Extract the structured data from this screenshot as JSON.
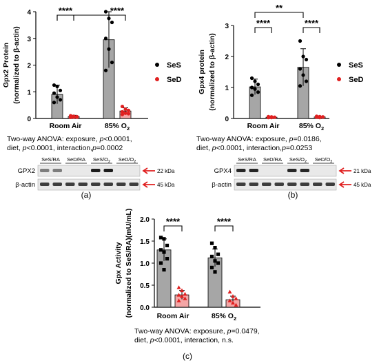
{
  "chart_data": [
    {
      "panel": "(a)",
      "type": "bar",
      "ylabel_line1": "Gpx2 Protein",
      "ylabel_line2": "(normalized to β-actin)",
      "ylim": [
        0,
        4
      ],
      "yticks": [
        "0",
        "1",
        "2",
        "3",
        "4"
      ],
      "categories": [
        "Room Air",
        "85% O₂"
      ],
      "series": [
        {
          "name": "SeS",
          "color": "#000000",
          "bar_color": "#a6a6a6",
          "values": [
            0.9,
            2.95
          ],
          "sd": [
            0.35,
            1.05
          ],
          "points": [
            [
              1.25,
              1.2,
              1.05,
              0.95,
              0.8,
              0.7,
              0.6
            ],
            [
              4.0,
              3.75,
              3.6,
              3.0,
              2.6,
              2.1,
              1.8
            ]
          ],
          "marker": "circle"
        },
        {
          "name": "SeD",
          "color": "#e02020",
          "bar_color": "#f4a6a6",
          "values": [
            0.07,
            0.28
          ],
          "sd": [
            0.05,
            0.12
          ],
          "points": [
            [
              0.1,
              0.08,
              0.07,
              0.06,
              0.05,
              0.05,
              0.04
            ],
            [
              0.45,
              0.35,
              0.3,
              0.25,
              0.2,
              0.18,
              0.15
            ]
          ],
          "marker": "circle"
        }
      ],
      "significance": [
        "****",
        "****"
      ],
      "stats_line1": "Two-way ANOVA: exposure, p<0.0001,",
      "stats_line2": "diet, p<0.0001, interaction,p=0.0002",
      "blot_lanes": [
        "SeS/RA",
        "SeD/RA",
        "SeS/O₂",
        "SeD/O₂"
      ],
      "blot_rows": [
        {
          "label": "GPX2",
          "kda": "22 kDa"
        },
        {
          "label": "β-actin",
          "kda": "45 kDa"
        }
      ]
    },
    {
      "panel": "(b)",
      "type": "bar",
      "ylabel_line1": "Gpx4 protein",
      "ylabel_line2": "(normalized to β-actin)",
      "ylim": [
        0,
        3
      ],
      "yticks": [
        "0",
        "1",
        "2",
        "3"
      ],
      "categories": [
        "Room Air",
        "85% O₂"
      ],
      "series": [
        {
          "name": "SeS",
          "color": "#000000",
          "bar_color": "#a6a6a6",
          "values": [
            1.02,
            1.65
          ],
          "sd": [
            0.25,
            0.6
          ],
          "points": [
            [
              1.3,
              1.2,
              1.1,
              1.0,
              0.95,
              0.85,
              0.75
            ],
            [
              2.5,
              2.0,
              1.9,
              1.6,
              1.4,
              1.2,
              1.05
            ]
          ],
          "marker": "circle"
        },
        {
          "name": "SeD",
          "color": "#e02020",
          "bar_color": "#f4a6a6",
          "values": [
            0.04,
            0.05
          ],
          "sd": [
            0.02,
            0.02
          ],
          "points": [
            [
              0.06,
              0.05,
              0.04,
              0.03,
              0.03
            ],
            [
              0.07,
              0.06,
              0.05,
              0.04,
              0.03
            ]
          ],
          "marker": "circle"
        }
      ],
      "significance": [
        "****",
        "****"
      ],
      "significance_across": "**",
      "stats_line1": "Two-way ANOVA: exposure, p=0.0186,",
      "stats_line2": "diet, p<0.0001, interaction,p=0.0253",
      "blot_lanes": [
        "SeS/RA",
        "SeD/RA",
        "SeS/O₂",
        "SeD/O₂"
      ],
      "blot_rows": [
        {
          "label": "GPX4",
          "kda": "21 kDa"
        },
        {
          "label": "β-actin",
          "kda": "45 kDa"
        }
      ]
    },
    {
      "panel": "(c)",
      "type": "bar",
      "ylabel_line1": "Gpx Activity",
      "ylabel_line2": "(normalized to SeS/RA)(mU/mL)",
      "ylim": [
        0,
        2.0
      ],
      "yticks": [
        "0.0",
        "0.5",
        "1.0",
        "1.5",
        "2.0"
      ],
      "categories": [
        "Room Air",
        "85% O₂"
      ],
      "series": [
        {
          "name": "SeS",
          "color": "#000000",
          "bar_color": "#a6a6a6",
          "values": [
            1.3,
            1.12
          ],
          "sd": [
            0.25,
            0.2
          ],
          "points": [
            [
              1.58,
              1.55,
              1.4,
              1.3,
              1.25,
              1.1,
              1.0,
              0.85
            ],
            [
              1.45,
              1.35,
              1.2,
              1.15,
              1.05,
              1.0,
              0.9,
              0.8
            ]
          ],
          "marker": "square"
        },
        {
          "name": "SeD",
          "color": "#e02020",
          "bar_color": "#f4a6a6",
          "values": [
            0.28,
            0.17
          ],
          "sd": [
            0.1,
            0.08
          ],
          "points": [
            [
              0.45,
              0.38,
              0.3,
              0.28,
              0.25,
              0.2,
              0.15
            ],
            [
              0.35,
              0.25,
              0.2,
              0.15,
              0.1,
              0.05
            ]
          ],
          "marker": "triangle"
        }
      ],
      "significance": [
        "****",
        "****"
      ],
      "stats_line1": "Two-way ANOVA: exposure, p=0.0479,",
      "stats_line2": "diet, p<0.0001, interaction, n.s."
    }
  ]
}
